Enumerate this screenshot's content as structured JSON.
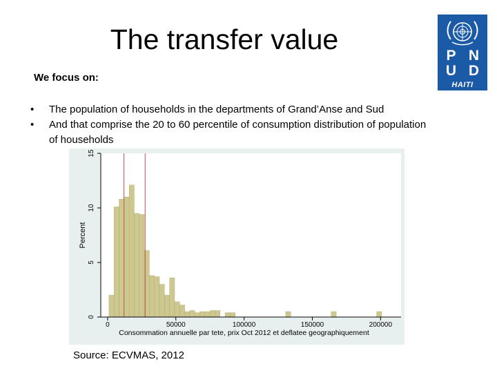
{
  "slide": {
    "title": "The transfer value",
    "focus_label": "We focus on:",
    "bullets": [
      "The population of households in the departments of Grand’Anse and Sud",
      "And that comprise the 20 to 60 percentile of consumption distribution of population of households"
    ],
    "source": "Source: ECVMAS, 2012"
  },
  "logo": {
    "letters": [
      "P",
      "N",
      "U",
      "D"
    ],
    "country": "HAITI",
    "colors": {
      "brand": "#1a5aa6"
    }
  },
  "chart_data": {
    "type": "bar",
    "title": "",
    "xlabel": "Consommation annuelle par tete, prix Oct 2012 et deflatee geographiquement",
    "ylabel": "Percent",
    "xlim": [
      -5000,
      215000
    ],
    "ylim": [
      0,
      15
    ],
    "xticks": [
      0,
      50000,
      100000,
      150000,
      200000
    ],
    "xtick_labels": [
      "0",
      "50000",
      "100000",
      "150000",
      "200000"
    ],
    "yticks": [
      0,
      5,
      10,
      15
    ],
    "ytick_labels": [
      "0",
      "5",
      "10",
      "15"
    ],
    "bin_width": 3700,
    "bin_start": 1000,
    "values": [
      2.0,
      10.1,
      10.8,
      11.0,
      12.1,
      9.5,
      9.4,
      6.1,
      3.8,
      3.7,
      3.0,
      2.0,
      3.6,
      1.4,
      1.1,
      0.5,
      0.6,
      0.4,
      0.5,
      0.5,
      0.6,
      0.6,
      0.0,
      0.4,
      0.4,
      0.0,
      0.0,
      0.0,
      0.0,
      0.0,
      0.0,
      0.0,
      0.0,
      0.0,
      0.0,
      0.5,
      0.0,
      0.0,
      0.0,
      0.0,
      0.0,
      0.0,
      0.0,
      0.0,
      0.5,
      0.0,
      0.0,
      0.0,
      0.0,
      0.0,
      0.0,
      0.0,
      0.0,
      0.5,
      0.0,
      0.0
    ],
    "reference_lines_x": [
      12000,
      27500
    ],
    "grid": false,
    "colors": {
      "bars": "#cdc88f",
      "bar_edge": "#ada86a",
      "reference_lines": "#c0504d",
      "plot_bg": "#ffffff",
      "frame_bg": "#e8efef"
    }
  }
}
